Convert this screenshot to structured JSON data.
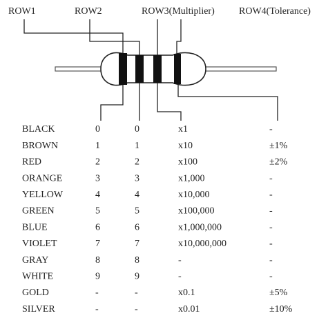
{
  "header": {
    "labels": [
      "ROW1",
      "ROW2",
      "ROW3(Multiplier)",
      "ROW4(Tolerance)"
    ]
  },
  "table": {
    "rows": [
      [
        "BLACK",
        "0",
        "0",
        "x1",
        "-"
      ],
      [
        "BROWN",
        "1",
        "1",
        "x10",
        "±1%"
      ],
      [
        "RED",
        "2",
        "2",
        "x100",
        "±2%"
      ],
      [
        "ORANGE",
        "3",
        "3",
        "x1,000",
        "-"
      ],
      [
        "YELLOW",
        "4",
        "4",
        "x10,000",
        "-"
      ],
      [
        "GREEN",
        "5",
        "5",
        "x100,000",
        "-"
      ],
      [
        "BLUE",
        "6",
        "6",
        "x1,000,000",
        "-"
      ],
      [
        "VIOLET",
        "7",
        "7",
        "x10,000,000",
        "-"
      ],
      [
        "GRAY",
        "8",
        "8",
        "-",
        "-"
      ],
      [
        "WHITE",
        "9",
        "9",
        "-",
        "-"
      ],
      [
        "GOLD",
        "-",
        "-",
        "x0.1",
        "±5%"
      ],
      [
        "SILVER",
        "-",
        "-",
        "x0.01",
        "±10%"
      ]
    ]
  }
}
